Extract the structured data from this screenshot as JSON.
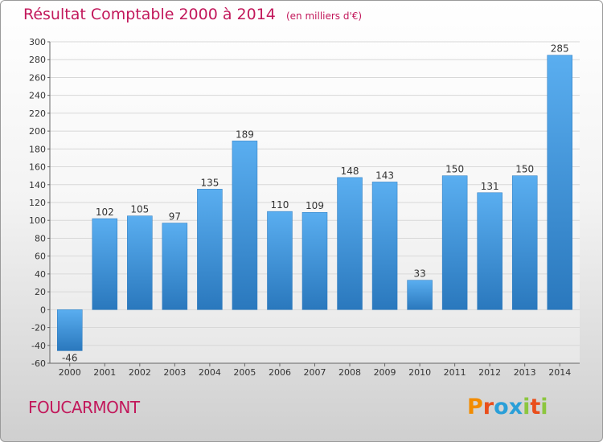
{
  "chart_data": {
    "type": "bar",
    "title": "Résultat Comptable 2000 à 2014",
    "subtitle": "(en milliers d'€)",
    "categories": [
      "2000",
      "2001",
      "2002",
      "2003",
      "2004",
      "2005",
      "2006",
      "2007",
      "2008",
      "2009",
      "2010",
      "2011",
      "2012",
      "2013",
      "2014"
    ],
    "values": [
      -46,
      102,
      105,
      97,
      135,
      189,
      110,
      109,
      148,
      143,
      33,
      150,
      131,
      150,
      285
    ],
    "ylim": [
      -60,
      300
    ],
    "yticks": [
      -60,
      -40,
      -20,
      0,
      20,
      40,
      60,
      80,
      100,
      120,
      140,
      160,
      180,
      200,
      220,
      240,
      260,
      280,
      300
    ],
    "grid": true,
    "xlabel": "",
    "ylabel": "",
    "bar_color": "#3a8fd4"
  },
  "footer": {
    "city": "FOUCARMONT",
    "brand": "Proxiti"
  },
  "brand_colors": [
    "#f28c00",
    "#e94e1b",
    "#2a9fd8",
    "#2a9fd8",
    "#8cc63f",
    "#e94e1b",
    "#8cc63f"
  ]
}
